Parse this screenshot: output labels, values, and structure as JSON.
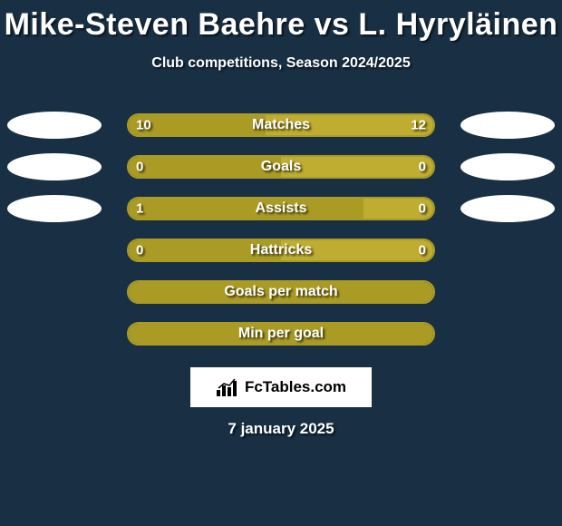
{
  "title": "Mike-Steven Baehre vs L. Hyryläinen",
  "subtitle": "Club competitions, Season 2024/2025",
  "date": "7 january 2025",
  "logo_text": "FcTables.com",
  "colors": {
    "background": "#193044",
    "left_fill": "#aa9b25",
    "right_fill": "#bead30",
    "left_border": "#aa9b25",
    "right_border": "#bead30",
    "text": "#ffffff",
    "oval": "#ffffff"
  },
  "chart": {
    "bar_container_width": 340,
    "rows": [
      {
        "label": "Matches",
        "left_val": "10",
        "right_val": "12",
        "left_pct": 45,
        "right_pct": 55,
        "show_ovals": true,
        "show_vals": true
      },
      {
        "label": "Goals",
        "left_val": "0",
        "right_val": "0",
        "left_pct": 50,
        "right_pct": 50,
        "show_ovals": true,
        "show_vals": true
      },
      {
        "label": "Assists",
        "left_val": "1",
        "right_val": "0",
        "left_pct": 77,
        "right_pct": 23,
        "show_ovals": true,
        "show_vals": true
      },
      {
        "label": "Hattricks",
        "left_val": "0",
        "right_val": "0",
        "left_pct": 50,
        "right_pct": 50,
        "show_ovals": false,
        "show_vals": true
      },
      {
        "label": "Goals per match",
        "left_val": "",
        "right_val": "",
        "left_pct": 100,
        "right_pct": 0,
        "show_ovals": false,
        "show_vals": false
      },
      {
        "label": "Min per goal",
        "left_val": "",
        "right_val": "",
        "left_pct": 100,
        "right_pct": 0,
        "show_ovals": false,
        "show_vals": false
      }
    ]
  }
}
